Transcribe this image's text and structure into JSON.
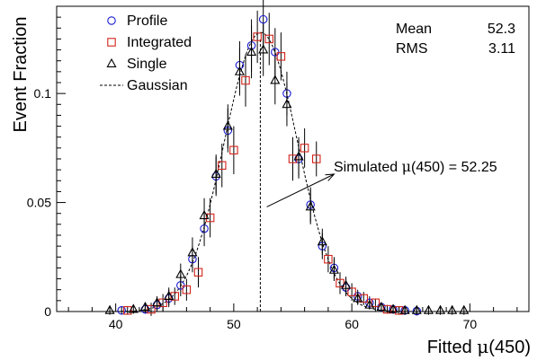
{
  "chart_data": {
    "type": "scatter",
    "xlabel_prefix": "Fitted ",
    "xlabel_mu": "μ",
    "xlabel_suffix": "(450)",
    "ylabel": "Event Fraction",
    "xlim": [
      35,
      75
    ],
    "ylim": [
      0,
      0.14
    ],
    "xticks": [
      40,
      50,
      60,
      70
    ],
    "yticks": [
      0,
      0.05,
      0.1
    ],
    "ytick_labels": [
      "0",
      "0.05",
      "0.1"
    ],
    "grid": false,
    "legend_position": "top-left",
    "legend": [
      {
        "label": "Profile",
        "marker": "circle",
        "color": "#1a1ad2"
      },
      {
        "label": "Integrated",
        "marker": "square",
        "color": "#d2231a"
      },
      {
        "label": "Single",
        "marker": "triangle",
        "color": "#000000"
      },
      {
        "label": "Gaussian",
        "marker": "dashed-line",
        "color": "#000000"
      }
    ],
    "stats": [
      {
        "label": "Mean",
        "value": "52.3"
      },
      {
        "label": "RMS",
        "value": "3.11"
      }
    ],
    "annotation": {
      "text_prefix": "Simulated ",
      "text_mu": "μ",
      "text_suffix": "(450) = 52.25",
      "arrow_from": [
        52.8,
        0.048
      ],
      "arrow_to": [
        58.5,
        0.063
      ]
    },
    "true_value": 52.25,
    "gaussian": {
      "mean": 52.3,
      "sigma": 3.11,
      "amplitude": 0.128
    },
    "series": [
      {
        "name": "Profile",
        "marker": "circle",
        "color": "#1a1ad2",
        "x": [
          40.5,
          42.5,
          43.5,
          44.5,
          45.5,
          46.5,
          47.5,
          48.5,
          49.5,
          50.5,
          51.5,
          52.5,
          53.5,
          54.5,
          55.5,
          56.5,
          57.5,
          58.5,
          59.5,
          60.5,
          61.5,
          62.5,
          63.5,
          64.5,
          65.5
        ],
        "y": [
          0.0005,
          0.001,
          0.003,
          0.006,
          0.012,
          0.024,
          0.038,
          0.062,
          0.083,
          0.113,
          0.122,
          0.134,
          0.119,
          0.1,
          0.07,
          0.049,
          0.03,
          0.02,
          0.011,
          0.007,
          0.004,
          0.002,
          0.001,
          0.0005,
          0.0002
        ],
        "yerr": [
          0.002,
          0.002,
          0.003,
          0.004,
          0.005,
          0.006,
          0.008,
          0.009,
          0.01,
          0.011,
          0.012,
          0.012,
          0.011,
          0.01,
          0.009,
          0.008,
          0.006,
          0.005,
          0.004,
          0.003,
          0.003,
          0.002,
          0.002,
          0.002,
          0.002
        ]
      },
      {
        "name": "Integrated",
        "marker": "square",
        "color": "#d2231a",
        "x": [
          41,
          43,
          44,
          45,
          46,
          47,
          48,
          49,
          50,
          51,
          52,
          53,
          54,
          55,
          56,
          57,
          58,
          59,
          60,
          61,
          62,
          63,
          64
        ],
        "y": [
          0.0005,
          0.001,
          0.004,
          0.007,
          0.01,
          0.018,
          0.043,
          0.067,
          0.074,
          0.106,
          0.126,
          0.125,
          0.117,
          0.07,
          0.075,
          0.07,
          0.024,
          0.013,
          0.009,
          0.006,
          0.004,
          0.001,
          0.0005
        ],
        "yerr": [
          0.002,
          0.003,
          0.004,
          0.004,
          0.005,
          0.007,
          0.009,
          0.01,
          0.011,
          0.012,
          0.012,
          0.012,
          0.011,
          0.01,
          0.009,
          0.008,
          0.006,
          0.005,
          0.004,
          0.003,
          0.002,
          0.002,
          0.002
        ]
      },
      {
        "name": "Single",
        "marker": "triangle",
        "color": "#000000",
        "x": [
          39.5,
          41.5,
          42.5,
          43.5,
          44.5,
          45.5,
          46.5,
          47.5,
          48.5,
          49.5,
          50.5,
          51.5,
          52.5,
          53.5,
          54.5,
          55.5,
          56.5,
          57.5,
          58.5,
          59.5,
          60.5,
          61.5,
          62.5,
          63.5,
          64.5,
          65.5,
          66.5,
          67.5,
          68.5,
          69.5
        ],
        "y": [
          0.0005,
          0.001,
          0.002,
          0.004,
          0.007,
          0.017,
          0.027,
          0.044,
          0.063,
          0.085,
          0.11,
          0.119,
          0.12,
          0.106,
          0.095,
          0.071,
          0.048,
          0.032,
          0.019,
          0.012,
          0.006,
          0.003,
          0.002,
          0.001,
          0.0005,
          0.0005,
          0.0005,
          0.0005,
          0.0005,
          0.0005
        ],
        "yerr": [
          0.002,
          0.002,
          0.002,
          0.003,
          0.004,
          0.005,
          0.007,
          0.008,
          0.009,
          0.01,
          0.011,
          0.012,
          0.012,
          0.011,
          0.01,
          0.009,
          0.008,
          0.006,
          0.005,
          0.004,
          0.003,
          0.002,
          0.002,
          0.002,
          0.002,
          0.002,
          0.002,
          0.002,
          0.002,
          0.002
        ]
      }
    ]
  }
}
